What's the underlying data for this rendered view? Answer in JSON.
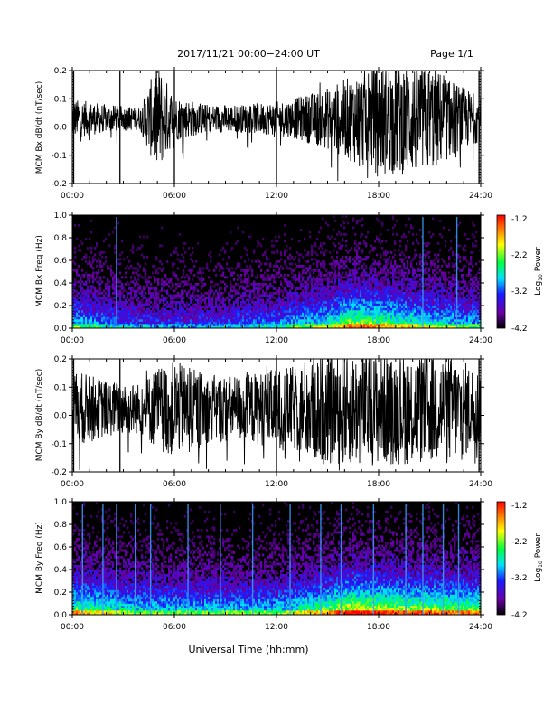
{
  "header": {
    "date_range": "2017/11/21  00:00−24:00 UT",
    "page": "Page 1/1"
  },
  "footer": {
    "xlabel": "Universal Time (hh:mm)"
  },
  "colorbar": {
    "label": "Log10 Power",
    "ticks": [
      "-1.2",
      "-2.2",
      "-3.2",
      "-4.2"
    ],
    "range": [
      -4.2,
      -1.2
    ],
    "colors": [
      "#000000",
      "#6a00a8",
      "#1a1aff",
      "#00e0ff",
      "#00ff40",
      "#ffff00",
      "#ff8000",
      "#ff0000"
    ]
  },
  "panel_ids": [
    "bx_series",
    "bx_spec",
    "by_series",
    "by_spec"
  ],
  "panels": {
    "bx_series": {
      "ylabel": "MCM Bx dB/dt (nT/sec)",
      "yticks": [
        "0.2",
        "0.1",
        "0.0",
        "-0.1",
        "-0.2"
      ]
    },
    "bx_spec": {
      "ylabel": "MCM Bx Freq (Hz)",
      "yticks": [
        "1.0",
        "0.8",
        "0.6",
        "0.4",
        "0.2",
        "0.0"
      ]
    },
    "by_series": {
      "ylabel": "MCM By dB/dt (nT/sec)",
      "yticks": [
        "0.2",
        "0.1",
        "0.0",
        "-0.1",
        "-0.2"
      ]
    },
    "by_spec": {
      "ylabel": "MCM By Freq (Hz)",
      "yticks": [
        "1.0",
        "0.8",
        "0.6",
        "0.4",
        "0.2",
        "0.0"
      ]
    }
  },
  "xticks": [
    "00:00",
    "06:00",
    "12:00",
    "18:00",
    "24:00"
  ],
  "chart_data": [
    {
      "type": "line",
      "title": "",
      "ylabel": "MCM Bx dB/dt (nT/sec)",
      "xlabel": "Universal Time (hh:mm)",
      "xlim": [
        0,
        24
      ],
      "ylim": [
        -0.2,
        0.2
      ],
      "x_hours": [
        0,
        2,
        4,
        5,
        6,
        8,
        10,
        12,
        13,
        14,
        15,
        16,
        17,
        18,
        19,
        20,
        21,
        22,
        23,
        24
      ],
      "amplitude_envelope": [
        0.07,
        0.05,
        0.04,
        0.2,
        0.08,
        0.05,
        0.05,
        0.06,
        0.07,
        0.09,
        0.11,
        0.14,
        0.17,
        0.2,
        0.2,
        0.2,
        0.2,
        0.15,
        0.11,
        0.08
      ],
      "baseline": 0.05,
      "vertical_spikes_hours": [
        0.08,
        2.8,
        6.0,
        12.0,
        23.9
      ]
    },
    {
      "type": "heatmap",
      "ylabel": "MCM Bx Freq (Hz)",
      "xlim": [
        0,
        24
      ],
      "ylim": [
        0,
        1.0
      ],
      "color_range": [
        -4.2,
        -1.2
      ],
      "activity_profile_hours": [
        0,
        3,
        6,
        9,
        12,
        15,
        16.5,
        18,
        21,
        24
      ],
      "activity_profile": [
        0.55,
        0.4,
        0.35,
        0.38,
        0.45,
        0.62,
        0.8,
        0.75,
        0.6,
        0.5
      ],
      "bright_lines_hours": [
        2.6,
        20.6,
        22.6
      ]
    },
    {
      "type": "line",
      "ylabel": "MCM By dB/dt (nT/sec)",
      "xlabel": "Universal Time (hh:mm)",
      "xlim": [
        0,
        24
      ],
      "ylim": [
        -0.2,
        0.2
      ],
      "x_hours": [
        0,
        2,
        4,
        5,
        6,
        8,
        10,
        12,
        13,
        14,
        15,
        16,
        17,
        18,
        19,
        20,
        21,
        22,
        23,
        24
      ],
      "amplitude_envelope": [
        0.14,
        0.1,
        0.09,
        0.15,
        0.17,
        0.12,
        0.12,
        0.14,
        0.15,
        0.19,
        0.2,
        0.2,
        0.2,
        0.2,
        0.2,
        0.2,
        0.2,
        0.2,
        0.17,
        0.14
      ],
      "baseline": 0.04,
      "vertical_spikes_hours": [
        0.08,
        2.8,
        12.0,
        23.9
      ]
    },
    {
      "type": "heatmap",
      "ylabel": "MCM By Freq (Hz)",
      "xlim": [
        0,
        24
      ],
      "ylim": [
        0,
        1.0
      ],
      "color_range": [
        -4.2,
        -1.2
      ],
      "activity_profile_hours": [
        0,
        3,
        6,
        9,
        12,
        15,
        16.5,
        18,
        21,
        24
      ],
      "activity_profile": [
        0.75,
        0.6,
        0.55,
        0.55,
        0.55,
        0.75,
        0.9,
        0.85,
        0.8,
        0.75
      ],
      "bright_lines_hours": [
        0.6,
        1.8,
        2.6,
        3.7,
        4.6,
        6.8,
        8.7,
        10.6,
        12.8,
        14.6,
        15.8,
        17.7,
        19.6,
        20.6,
        21.8,
        22.7
      ]
    }
  ]
}
